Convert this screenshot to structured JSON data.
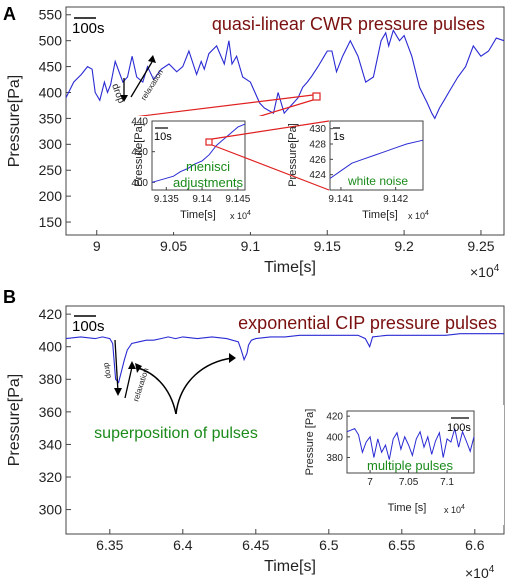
{
  "colors": {
    "series": "#2a2ad4",
    "title": "#7a1010",
    "annotation_green": "#1a8a1a",
    "zoom": "#e02020",
    "arrow": "#000000"
  },
  "panels": [
    {
      "letter": "A",
      "title": "quasi-linear CWR pressure pulses",
      "scale_bar": "100s",
      "arrow_labels": {
        "drop": "drop",
        "relaxation": "relaxation"
      },
      "main": {
        "xlabel": "Time[s]",
        "ylabel": "Pressure[Pa]",
        "x_exponent": "×10",
        "x_exponent_power": "4",
        "xticks": [
          "9",
          "9.05",
          "9.1",
          "9.15",
          "9.2",
          "9.25"
        ],
        "yticks": [
          "150",
          "200",
          "250",
          "300",
          "350",
          "400",
          "450",
          "500",
          "550"
        ]
      },
      "inset1": {
        "annotation": [
          "menisci",
          "adjustments"
        ],
        "scale_bar": "10s",
        "xlabel": "Time[s]",
        "ylabel": "Pressure[Pa]",
        "x_exponent": "x 10",
        "x_exponent_power": "4",
        "xticks": [
          "9.135",
          "9.14",
          "9.145"
        ],
        "yticks": [
          "400",
          "420",
          "440"
        ]
      },
      "inset2": {
        "annotation": "white noise",
        "scale_bar": "1s",
        "xlabel": "Time[s]",
        "ylabel": "Pressure[Pa]",
        "x_exponent": "x 10",
        "x_exponent_power": "4",
        "xticks": [
          "9.141",
          "9.142"
        ],
        "yticks": [
          "424",
          "426",
          "428",
          "430"
        ]
      }
    },
    {
      "letter": "B",
      "title": "exponential CIP pressure pulses",
      "scale_bar": "100s",
      "arrow_labels": {
        "drop": "drop",
        "relaxation": "relaxation"
      },
      "annotation": "superposition of pulses",
      "main": {
        "xlabel": "Time[s]",
        "ylabel": "Pressure[Pa]",
        "x_exponent": "×10",
        "x_exponent_power": "4",
        "xticks": [
          "6.35",
          "6.4",
          "6.45",
          "6.5",
          "6.55",
          "6.6"
        ],
        "yticks": [
          "300",
          "320",
          "340",
          "360",
          "380",
          "400",
          "420"
        ]
      },
      "inset": {
        "annotation": "multiple pulses",
        "scale_bar": "100s",
        "xlabel": "Time [s]",
        "ylabel": "Pressure [Pa]",
        "x_exponent": "x 10",
        "x_exponent_power": "4",
        "xticks": [
          "7",
          "7.05",
          "7.1"
        ],
        "yticks": [
          "380",
          "400",
          "420"
        ]
      }
    }
  ],
  "chart_data": [
    {
      "type": "line",
      "title": "quasi-linear CWR pressure pulses",
      "xlabel": "Time[s]",
      "ylabel": "Pressure[Pa]",
      "xlim": [
        89800,
        92650
      ],
      "ylim": [
        125,
        565
      ],
      "series": [
        {
          "x": [
            89800,
            89850,
            89900,
            89940,
            89970,
            89990,
            90020,
            90050,
            90070,
            90090,
            90120,
            90170,
            90200,
            90230,
            90260,
            90300,
            90330,
            90370,
            90420,
            90470,
            90520,
            90560,
            90600,
            90650,
            90680,
            90700,
            90730,
            90780,
            90830,
            90860,
            90880,
            90910,
            90950,
            91000,
            91030,
            91060,
            91090,
            91120,
            91150,
            91180,
            91220,
            91250,
            91280,
            91310,
            91340,
            91370,
            91400,
            91440,
            91480,
            91500,
            91530,
            91560,
            91600,
            91650,
            91700,
            91750,
            91800,
            91850,
            91880,
            91900,
            91930,
            91970,
            92000,
            92050,
            92100,
            92150,
            92180,
            92200,
            92230,
            92260,
            92300,
            92350,
            92400,
            92450,
            92500,
            92550,
            92600,
            92650
          ],
          "y": [
            390,
            420,
            435,
            450,
            445,
            400,
            385,
            420,
            400,
            415,
            460,
            420,
            430,
            470,
            430,
            420,
            450,
            425,
            445,
            455,
            440,
            450,
            480,
            435,
            460,
            445,
            475,
            490,
            455,
            500,
            455,
            470,
            430,
            420,
            400,
            380,
            370,
            365,
            360,
            400,
            360,
            370,
            380,
            390,
            410,
            420,
            432,
            450,
            470,
            480,
            480,
            440,
            470,
            500,
            470,
            420,
            430,
            500,
            515,
            490,
            520,
            500,
            510,
            470,
            410,
            380,
            360,
            350,
            370,
            385,
            405,
            430,
            450,
            490,
            470,
            480,
            505,
            500
          ]
        }
      ]
    },
    {
      "type": "line",
      "title": "menisci adjustments",
      "xlabel": "Time[s]",
      "ylabel": "Pressure[Pa]",
      "xlim": [
        91330,
        91460
      ],
      "ylim": [
        395,
        440
      ],
      "series": [
        {
          "x": [
            91330,
            91345,
            91360,
            91370,
            91380,
            91390,
            91400,
            91410,
            91420,
            91430,
            91440,
            91450,
            91460
          ],
          "y": [
            400,
            402,
            404,
            407,
            409,
            412,
            414,
            418,
            424,
            428,
            432,
            436,
            438
          ]
        }
      ]
    },
    {
      "type": "line",
      "title": "white noise",
      "xlabel": "Time[s]",
      "ylabel": "Pressure[Pa]",
      "xlim": [
        91408,
        91425
      ],
      "ylim": [
        422,
        431
      ],
      "series": [
        {
          "x": [
            91408,
            91410,
            91412,
            91414,
            91416,
            91418,
            91420,
            91422,
            91425
          ],
          "y": [
            423.5,
            424.5,
            425.5,
            426,
            426.5,
            427,
            427.5,
            428,
            428.5
          ]
        }
      ]
    },
    {
      "type": "line",
      "title": "exponential CIP pressure pulses",
      "xlabel": "Time[s]",
      "ylabel": "Pressure[Pa]",
      "xlim": [
        63200,
        66200
      ],
      "ylim": [
        285,
        425
      ],
      "series": [
        {
          "x": [
            63200,
            63300,
            63400,
            63450,
            63500,
            63520,
            63540,
            63560,
            63580,
            63600,
            63620,
            63650,
            63700,
            63750,
            63800,
            63850,
            63900,
            63950,
            64000,
            64100,
            64200,
            64300,
            64380,
            64400,
            64420,
            64440,
            64450,
            64470,
            64500,
            64600,
            64700,
            64800,
            64900,
            65000,
            65100,
            65200,
            65250,
            65280,
            65300,
            65400,
            65500,
            65600,
            65700,
            65800,
            65900,
            66000,
            66100,
            66200
          ],
          "y": [
            405,
            406,
            405,
            406,
            405,
            402,
            380,
            378,
            385,
            392,
            398,
            402,
            403,
            404,
            404,
            405,
            406,
            405,
            406,
            405,
            406,
            405,
            403,
            398,
            392,
            396,
            401,
            404,
            405,
            406,
            406,
            407,
            407,
            407,
            407,
            407,
            405,
            400,
            406,
            407,
            407,
            407,
            407,
            407,
            408,
            408,
            408,
            408
          ]
        }
      ]
    },
    {
      "type": "line",
      "title": "multiple pulses",
      "xlabel": "Time [s]",
      "ylabel": "Pressure [Pa]",
      "xlim": [
        69700,
        71350
      ],
      "ylim": [
        365,
        425
      ],
      "series": [
        {
          "x": [
            69700,
            69800,
            69850,
            69900,
            69950,
            70000,
            70050,
            70100,
            70150,
            70200,
            70250,
            70300,
            70350,
            70400,
            70450,
            70500,
            70550,
            70600,
            70650,
            70700,
            70750,
            70800,
            70850,
            70900,
            70950,
            71000,
            71050,
            71100,
            71150,
            71200,
            71250,
            71300,
            71350
          ],
          "y": [
            405,
            408,
            402,
            385,
            395,
            400,
            380,
            398,
            385,
            392,
            378,
            398,
            404,
            388,
            400,
            392,
            382,
            398,
            405,
            390,
            400,
            383,
            396,
            404,
            380,
            398,
            395,
            408,
            390,
            405,
            396,
            386,
            400
          ]
        }
      ]
    }
  ]
}
